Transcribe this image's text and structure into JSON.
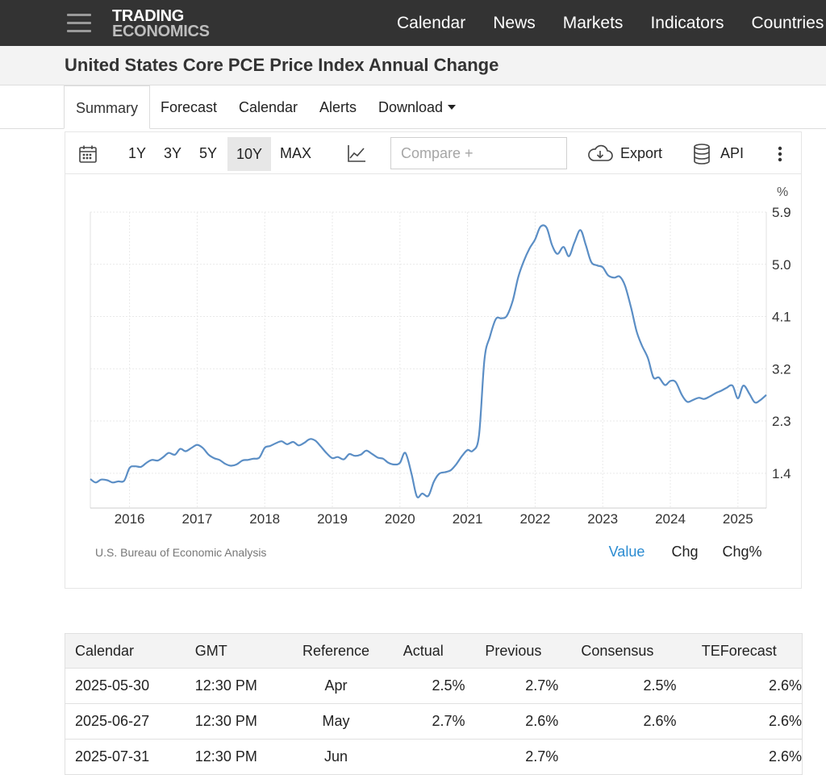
{
  "header": {
    "logo_line1": "TRADING",
    "logo_line2": "ECONOMICS",
    "nav": [
      "Calendar",
      "News",
      "Markets",
      "Indicators",
      "Countries"
    ]
  },
  "page_title": "United States Core PCE Price Index Annual Change",
  "tabs": {
    "summary": "Summary",
    "forecast": "Forecast",
    "calendar": "Calendar",
    "alerts": "Alerts",
    "download": "Download"
  },
  "toolbar": {
    "ranges": [
      "1Y",
      "3Y",
      "5Y",
      "10Y",
      "MAX"
    ],
    "selected_range": "10Y",
    "compare_placeholder": "Compare +",
    "export_label": "Export",
    "api_label": "API"
  },
  "chart_footer": {
    "source": "U.S. Bureau of Economic Analysis",
    "modes": [
      "Value",
      "Chg",
      "Chg%"
    ],
    "active_mode": "Value",
    "active_color": "#2a8bd1"
  },
  "chart_data": {
    "type": "line",
    "unit_label": "%",
    "line_color": "#5b8ec5",
    "y_ticks": [
      1.4,
      2.3,
      3.2,
      4.1,
      5.0,
      5.9
    ],
    "y_tick_labels": [
      "1.4",
      "2.3",
      "3.2",
      "4.1",
      "5.0",
      "5.9"
    ],
    "ylim": [
      0.8,
      5.9
    ],
    "x_ticks": [
      "2016",
      "2017",
      "2018",
      "2019",
      "2020",
      "2021",
      "2022",
      "2023",
      "2024",
      "2025"
    ],
    "xlim": [
      2015.42,
      2025.42
    ],
    "grid": true,
    "series": [
      {
        "x": [
          2015.42,
          2015.5,
          2015.58,
          2015.67,
          2015.75,
          2015.83,
          2015.92,
          2016.0,
          2016.08,
          2016.17,
          2016.25,
          2016.33,
          2016.42,
          2016.5,
          2016.58,
          2016.67,
          2016.75,
          2016.83,
          2016.92,
          2017.0,
          2017.08,
          2017.17,
          2017.25,
          2017.33,
          2017.42,
          2017.5,
          2017.58,
          2017.67,
          2017.75,
          2017.83,
          2017.92,
          2018.0,
          2018.08,
          2018.17,
          2018.25,
          2018.33,
          2018.42,
          2018.5,
          2018.58,
          2018.67,
          2018.75,
          2018.83,
          2018.92,
          2019.0,
          2019.08,
          2019.17,
          2019.25,
          2019.33,
          2019.42,
          2019.5,
          2019.58,
          2019.67,
          2019.75,
          2019.83,
          2019.92,
          2020.0,
          2020.08,
          2020.17,
          2020.25,
          2020.33,
          2020.42,
          2020.5,
          2020.58,
          2020.67,
          2020.75,
          2020.83,
          2020.92,
          2021.0,
          2021.08,
          2021.17,
          2021.25,
          2021.33,
          2021.42,
          2021.5,
          2021.58,
          2021.67,
          2021.75,
          2021.83,
          2021.92,
          2022.0,
          2022.08,
          2022.17,
          2022.25,
          2022.33,
          2022.42,
          2022.5,
          2022.58,
          2022.67,
          2022.75,
          2022.83,
          2022.92,
          2023.0,
          2023.08,
          2023.17,
          2023.25,
          2023.33,
          2023.42,
          2023.5,
          2023.58,
          2023.67,
          2023.75,
          2023.83,
          2023.92,
          2024.0,
          2024.08,
          2024.17,
          2024.25,
          2024.33,
          2024.42,
          2024.5,
          2024.58,
          2024.67,
          2024.75,
          2024.83,
          2024.92,
          2025.0,
          2025.08,
          2025.17,
          2025.25,
          2025.33,
          2025.42
        ],
        "values": [
          1.3,
          1.24,
          1.29,
          1.28,
          1.24,
          1.26,
          1.27,
          1.49,
          1.52,
          1.51,
          1.58,
          1.63,
          1.62,
          1.68,
          1.75,
          1.72,
          1.82,
          1.78,
          1.84,
          1.89,
          1.84,
          1.72,
          1.66,
          1.63,
          1.56,
          1.53,
          1.55,
          1.62,
          1.63,
          1.65,
          1.67,
          1.84,
          1.87,
          1.92,
          1.95,
          1.9,
          1.94,
          1.88,
          1.92,
          1.99,
          1.96,
          1.86,
          1.74,
          1.66,
          1.68,
          1.64,
          1.73,
          1.7,
          1.72,
          1.79,
          1.74,
          1.67,
          1.65,
          1.58,
          1.55,
          1.58,
          1.75,
          1.4,
          1.0,
          1.05,
          1.01,
          1.25,
          1.39,
          1.42,
          1.45,
          1.55,
          1.7,
          1.8,
          1.79,
          2.05,
          3.36,
          3.75,
          4.06,
          4.07,
          4.11,
          4.38,
          4.78,
          5.05,
          5.28,
          5.43,
          5.65,
          5.63,
          5.33,
          5.18,
          5.3,
          5.14,
          5.37,
          5.59,
          5.33,
          5.04,
          4.98,
          4.95,
          4.81,
          4.77,
          4.79,
          4.63,
          4.25,
          3.85,
          3.6,
          3.38,
          3.05,
          3.05,
          2.92,
          2.99,
          2.97,
          2.75,
          2.63,
          2.66,
          2.7,
          2.68,
          2.72,
          2.78,
          2.82,
          2.87,
          2.91,
          2.69,
          2.91,
          2.77,
          2.62,
          2.66,
          2.75
        ]
      }
    ]
  },
  "calendar_table": {
    "headers": [
      "Calendar",
      "GMT",
      "Reference",
      "Actual",
      "Previous",
      "Consensus",
      "TEForecast"
    ],
    "rows": [
      [
        "2025-05-30",
        "12:30 PM",
        "Apr",
        "2.5%",
        "2.7%",
        "2.5%",
        "2.6%"
      ],
      [
        "2025-06-27",
        "12:30 PM",
        "May",
        "2.7%",
        "2.6%",
        "2.6%",
        "2.6%"
      ],
      [
        "2025-07-31",
        "12:30 PM",
        "Jun",
        "",
        "2.7%",
        "",
        "2.6%"
      ]
    ]
  }
}
